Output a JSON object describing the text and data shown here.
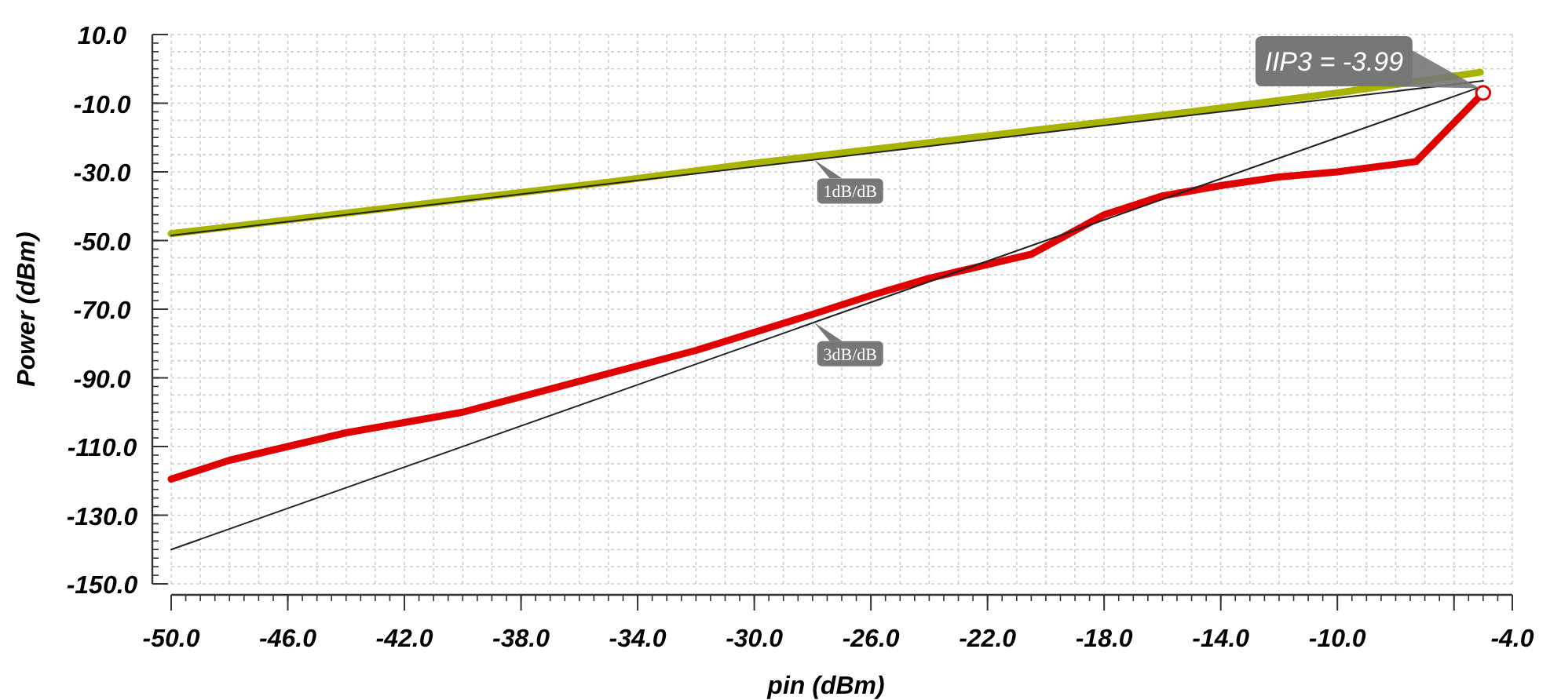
{
  "chart_data": {
    "type": "line",
    "xlabel": "pin (dBm)",
    "ylabel": "Power (dBm)",
    "xlim": [
      -50,
      -4
    ],
    "ylim": [
      -150,
      10
    ],
    "xticks": [
      {
        "value": -50,
        "label": "-50.0"
      },
      {
        "value": -46,
        "label": "-46.0"
      },
      {
        "value": -42,
        "label": "-42.0"
      },
      {
        "value": -38,
        "label": "-38.0"
      },
      {
        "value": -34,
        "label": "-34.0"
      },
      {
        "value": -30,
        "label": "-30.0"
      },
      {
        "value": -26,
        "label": "-26.0"
      },
      {
        "value": -22,
        "label": "-22.0"
      },
      {
        "value": -18,
        "label": "-18.0"
      },
      {
        "value": -14,
        "label": "-14.0"
      },
      {
        "value": -10,
        "label": "-10.0"
      },
      {
        "value": -6,
        "label": null
      },
      {
        "value": -4,
        "label": "-4.0"
      }
    ],
    "yticks": [
      {
        "value": 10,
        "label": "10.0"
      },
      {
        "value": -10,
        "label": "-10.0"
      },
      {
        "value": -30,
        "label": "-30.0"
      },
      {
        "value": -50,
        "label": "-50.0"
      },
      {
        "value": -70,
        "label": "-70.0"
      },
      {
        "value": -90,
        "label": "-90.0"
      },
      {
        "value": -110,
        "label": "-110.0"
      },
      {
        "value": -130,
        "label": "-130.0"
      },
      {
        "value": -150,
        "label": "-150.0"
      }
    ],
    "grid": true,
    "line_style": "solid",
    "series": [
      {
        "color": "#a8b400",
        "x": [
          -50,
          -45,
          -40,
          -35,
          -30,
          -25,
          -20,
          -15,
          -10,
          -5.1
        ],
        "values": [
          -48,
          -43,
          -38,
          -33,
          -27.5,
          -22.5,
          -17.5,
          -12.5,
          -7,
          -1
        ]
      },
      {
        "name": "1dB/dB",
        "color": "#222222",
        "x": [
          -50,
          -5
        ],
        "values": [
          -48.5,
          -3.5
        ]
      },
      {
        "color": "#e00000",
        "x": [
          -50,
          -48,
          -44,
          -40,
          -36,
          -32,
          -28,
          -26,
          -24,
          -22,
          -20.5,
          -18,
          -16,
          -14,
          -12,
          -10,
          -7.3,
          -5
        ],
        "values": [
          -119.5,
          -114,
          -106,
          -100,
          -91,
          -82,
          -71.5,
          -66,
          -61,
          -57,
          -54,
          -42.5,
          -37,
          -34,
          -31.5,
          -30,
          -27,
          -7
        ]
      },
      {
        "name": "3dB/dB",
        "color": "#222222",
        "x": [
          -50,
          -5
        ],
        "values": [
          -140,
          -5
        ]
      },
      {
        "type": "scatter",
        "marker": "circle",
        "color": "#e00000",
        "x": [
          -5
        ],
        "values": [
          -7
        ]
      }
    ],
    "annotations": [
      {
        "text": "IIP3 = -3.99",
        "x": -5,
        "y": -7
      }
    ]
  }
}
